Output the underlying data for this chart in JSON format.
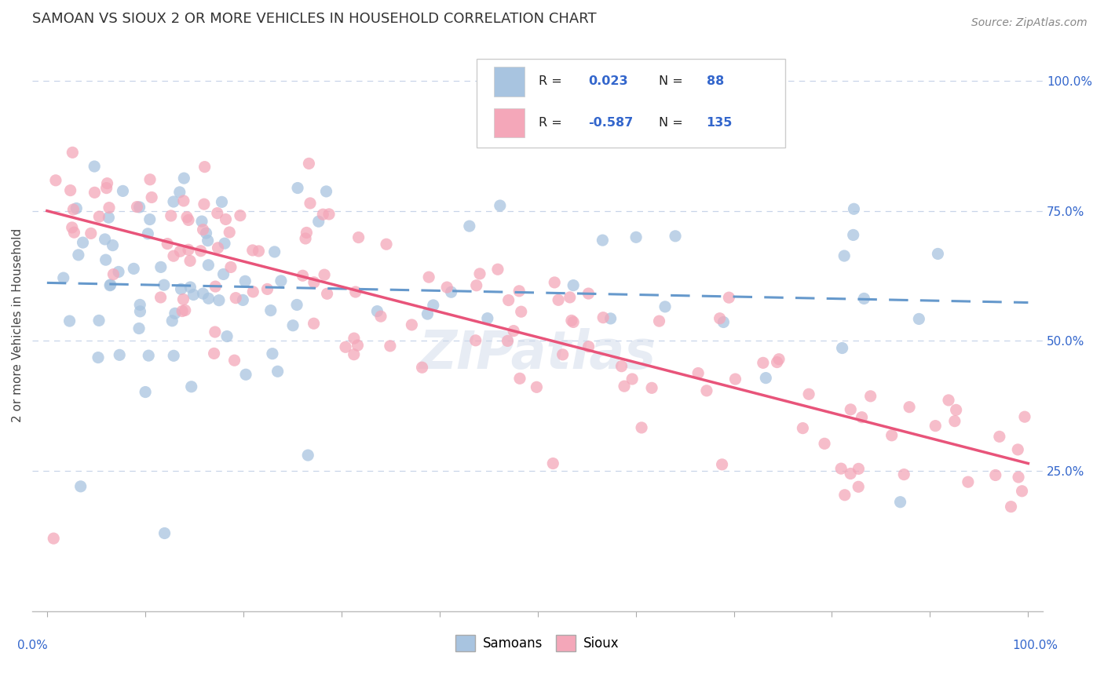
{
  "title": "SAMOAN VS SIOUX 2 OR MORE VEHICLES IN HOUSEHOLD CORRELATION CHART",
  "source": "Source: ZipAtlas.com",
  "ylabel": "2 or more Vehicles in Household",
  "ylabel_right_ticks": [
    "100.0%",
    "75.0%",
    "50.0%",
    "25.0%"
  ],
  "ylabel_right_vals": [
    1.0,
    0.75,
    0.5,
    0.25
  ],
  "legend_samoans_R": "0.023",
  "legend_samoans_N": "88",
  "legend_sioux_R": "-0.587",
  "legend_sioux_N": "135",
  "samoans_color": "#a8c4e0",
  "sioux_color": "#f4a7b9",
  "samoans_line_color": "#6699cc",
  "sioux_line_color": "#e8547a",
  "background_color": "#ffffff",
  "grid_color": "#c8d4e8",
  "title_fontsize": 13,
  "source_fontsize": 10,
  "tick_fontsize": 11,
  "legend_fontsize": 12,
  "samoans_seed": 42,
  "sioux_seed": 123
}
